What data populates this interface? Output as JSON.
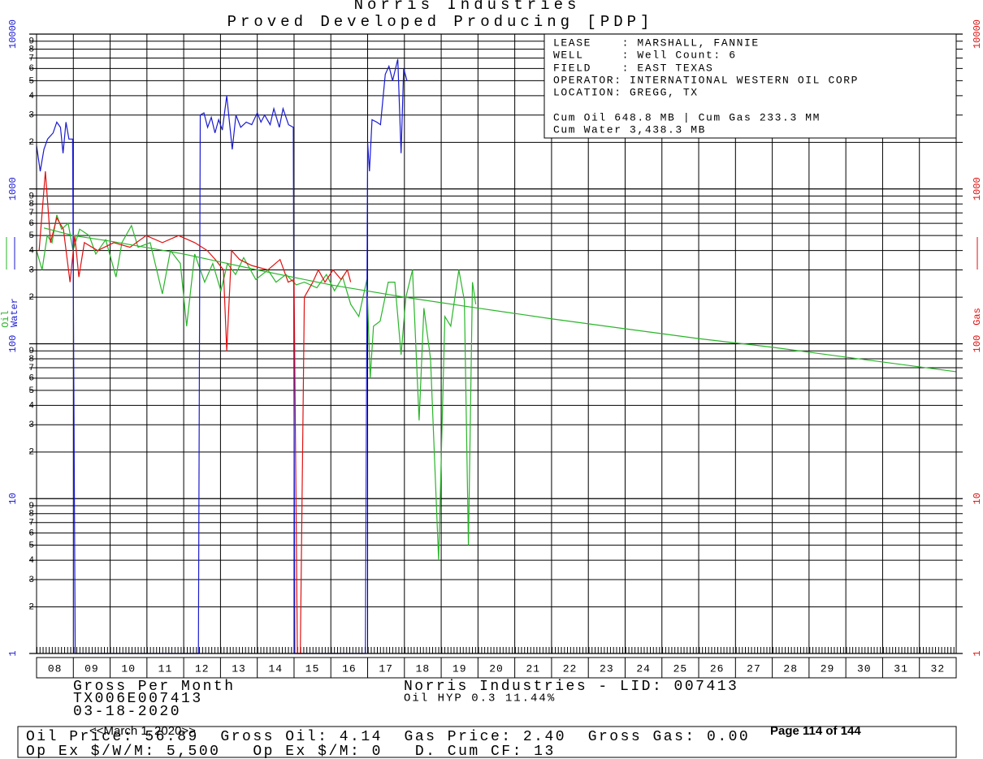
{
  "chart_data": {
    "type": "line",
    "title": "Norris Industries",
    "subtitle": "Proved Developed Producing [PDP]",
    "log_scale": true,
    "grid": true,
    "xlim": [
      2008,
      2033
    ],
    "xticks": [
      {
        "value": 2008,
        "label": "08"
      },
      {
        "value": 2009,
        "label": "09"
      },
      {
        "value": 2010,
        "label": "10"
      },
      {
        "value": 2011,
        "label": "11"
      },
      {
        "value": 2012,
        "label": "12"
      },
      {
        "value": 2013,
        "label": "13"
      },
      {
        "value": 2014,
        "label": "14"
      },
      {
        "value": 2015,
        "label": "15"
      },
      {
        "value": 2016,
        "label": "16"
      },
      {
        "value": 2017,
        "label": "17"
      },
      {
        "value": 2018,
        "label": "18"
      },
      {
        "value": 2019,
        "label": "19"
      },
      {
        "value": 2020,
        "label": "20"
      },
      {
        "value": 2021,
        "label": "21"
      },
      {
        "value": 2022,
        "label": "22"
      },
      {
        "value": 2023,
        "label": "23"
      },
      {
        "value": 2024,
        "label": "24"
      },
      {
        "value": 2025,
        "label": "25"
      },
      {
        "value": 2026,
        "label": "26"
      },
      {
        "value": 2027,
        "label": "27"
      },
      {
        "value": 2028,
        "label": "28"
      },
      {
        "value": 2029,
        "label": "29"
      },
      {
        "value": 2030,
        "label": "30"
      },
      {
        "value": 2031,
        "label": "31"
      },
      {
        "value": 2032,
        "label": "32"
      }
    ],
    "ylim": [
      1,
      10000
    ],
    "yticks": [
      1,
      10,
      100,
      1000,
      10000
    ],
    "yminor": [
      2,
      3,
      4,
      5,
      6,
      7,
      8,
      9,
      {
        "value": 20,
        "label": "2"
      },
      {
        "value": 30,
        "label": "3"
      },
      {
        "value": 40,
        "label": "4"
      },
      {
        "value": 50,
        "label": "5"
      },
      {
        "value": 60,
        "label": "6"
      },
      {
        "value": 70,
        "label": "7"
      },
      {
        "value": 80,
        "label": "8"
      },
      {
        "value": 90,
        "label": "9"
      },
      {
        "value": 200,
        "label": "2"
      },
      {
        "value": 300,
        "label": "3"
      },
      {
        "value": 400,
        "label": "4"
      },
      {
        "value": 500,
        "label": "5"
      },
      {
        "value": 600,
        "label": "6"
      },
      {
        "value": 700,
        "label": "7"
      },
      {
        "value": 800,
        "label": "8"
      },
      {
        "value": 900,
        "label": "9"
      },
      {
        "value": 2000,
        "label": "2"
      },
      {
        "value": 3000,
        "label": "3"
      },
      {
        "value": 4000,
        "label": "4"
      },
      {
        "value": 5000,
        "label": "5"
      },
      {
        "value": 6000,
        "label": "6"
      },
      {
        "value": 7000,
        "label": "7"
      },
      {
        "value": 8000,
        "label": "8"
      },
      {
        "value": 9000,
        "label": "9"
      }
    ],
    "y2lim": [
      1,
      10000
    ],
    "y2ticks": [
      1,
      10,
      100,
      1000,
      10000
    ],
    "series": [
      {
        "name": "Oil",
        "color": "#2ab52a",
        "x": [
          2008.0,
          2008.15,
          2008.29,
          2008.42,
          2008.55,
          2008.68,
          2008.86,
          2008.99,
          2009.17,
          2009.43,
          2009.61,
          2009.88,
          2010.16,
          2010.32,
          2010.58,
          2010.76,
          2011.09,
          2011.42,
          2011.64,
          2011.91,
          2012.08,
          2012.3,
          2012.57,
          2012.79,
          2013.01,
          2013.19,
          2013.41,
          2013.63,
          2013.96,
          2014.29,
          2014.51,
          2014.78,
          2015.06,
          2015.28,
          2015.62,
          2015.88,
          2016.1,
          2016.32,
          2016.54,
          2016.76,
          2016.98,
          2017.07,
          2017.16,
          2017.34,
          2017.56,
          2017.74,
          2017.91,
          2018.04,
          2018.22,
          2018.4,
          2018.53,
          2018.71,
          2018.93,
          2019.1,
          2019.26,
          2019.48,
          2019.63,
          2019.74,
          2019.85,
          2019.94
        ],
        "values": [
          400,
          300,
          500,
          450,
          680,
          550,
          600,
          400,
          550,
          500,
          380,
          470,
          270,
          450,
          580,
          420,
          450,
          210,
          400,
          330,
          130,
          380,
          250,
          330,
          220,
          330,
          280,
          360,
          260,
          300,
          250,
          280,
          240,
          250,
          230,
          280,
          220,
          270,
          180,
          150,
          260,
          60,
          130,
          140,
          250,
          250,
          85,
          200,
          300,
          32,
          170,
          80,
          4,
          150,
          130,
          300,
          190,
          5,
          250,
          180
        ]
      },
      {
        "name": "Water",
        "color": "#1a1ad0",
        "x": [
          2008.0,
          2008.1,
          2008.2,
          2008.3,
          2008.45,
          2008.55,
          2008.65,
          2008.72,
          2008.8,
          2008.88,
          2008.98,
          2009.05,
          2012.4,
          2012.45,
          2012.55,
          2012.65,
          2012.75,
          2012.85,
          2012.95,
          2013.05,
          2013.17,
          2013.32,
          2013.42,
          2013.55,
          2013.7,
          2013.85,
          2014.0,
          2014.1,
          2014.2,
          2014.35,
          2014.45,
          2014.6,
          2014.7,
          2014.85,
          2014.98,
          2015.02,
          2016.94,
          2017.0,
          2017.05,
          2017.12,
          2017.25,
          2017.35,
          2017.48,
          2017.58,
          2017.68,
          2017.82,
          2017.91,
          2017.98,
          2018.07
        ],
        "values": [
          1900,
          1300,
          1800,
          2100,
          2300,
          2700,
          2500,
          1700,
          2700,
          2100,
          2100,
          1,
          1,
          3000,
          3100,
          2500,
          2900,
          2300,
          2800,
          2400,
          4000,
          1800,
          3000,
          2500,
          2700,
          2600,
          3100,
          2700,
          3000,
          2600,
          3300,
          2500,
          3300,
          2600,
          2500,
          1,
          1,
          2000,
          1300,
          2800,
          2700,
          2600,
          5500,
          6200,
          5000,
          6900,
          1700,
          6000,
          5000
        ]
      },
      {
        "name": "Gas",
        "color": "#e01010",
        "axis": "y2",
        "x": [
          2008.07,
          2008.24,
          2008.38,
          2008.55,
          2008.73,
          2008.91,
          2009.04,
          2009.15,
          2009.3,
          2009.66,
          2010.1,
          2010.54,
          2010.98,
          2011.42,
          2011.86,
          2012.3,
          2012.64,
          2012.86,
          2013.08,
          2013.17,
          2013.3,
          2013.52,
          2013.85,
          2014.29,
          2014.62,
          2014.84,
          2015.0,
          2015.09,
          2015.17,
          2015.28,
          2015.51,
          2015.66,
          2015.84,
          2016.06,
          2016.28,
          2016.45,
          2016.54
        ],
        "values": [
          400,
          1300,
          450,
          650,
          550,
          250,
          500,
          270,
          450,
          400,
          450,
          420,
          500,
          450,
          500,
          450,
          400,
          350,
          300,
          90,
          400,
          350,
          320,
          300,
          350,
          250,
          260,
          1,
          1,
          200,
          250,
          300,
          250,
          300,
          260,
          300,
          250
        ]
      },
      {
        "color": "#2ab52a",
        "x": [
          2008.2,
          2009,
          2010,
          2012,
          2014,
          2016,
          2018,
          2020,
          2022,
          2024,
          2026,
          2028,
          2030,
          2033
        ],
        "values": [
          560,
          500,
          460,
          380,
          300,
          240,
          200,
          170,
          145,
          125,
          108,
          95,
          82,
          66
        ]
      }
    ],
    "info_lines": [
      "LEASE    : MARSHALL, FANNIE",
      "WELL     : Well Count: 6",
      "FIELD    : EAST TEXAS",
      "OPERATOR: INTERNATIONAL WESTERN OIL CORP",
      "LOCATION: GREGG, TX",
      "Cum Oil 648.8 MB | Cum Gas 233.3 MM",
      "Cum Water 3,438.3 MB"
    ],
    "footer_left": [
      "Gross Per Month",
      "TX006E007413",
      "03-18-2020"
    ],
    "footer_mid": [
      "Norris Industries - LID: 007413",
      "Oil HYP 0.3 11.44%"
    ],
    "footer_box": [
      "Oil Price: 56.89  Gross Oil: 4.14  Gas Price: 2.40  Gross Gas: 0.00",
      "Op Ex $/W/M: 5,500   Op Ex $/M: 0   D. Cum CF: 13"
    ],
    "date_stamp": "<<March 1, 2020>>",
    "page_label": "Page 114 of 144"
  }
}
